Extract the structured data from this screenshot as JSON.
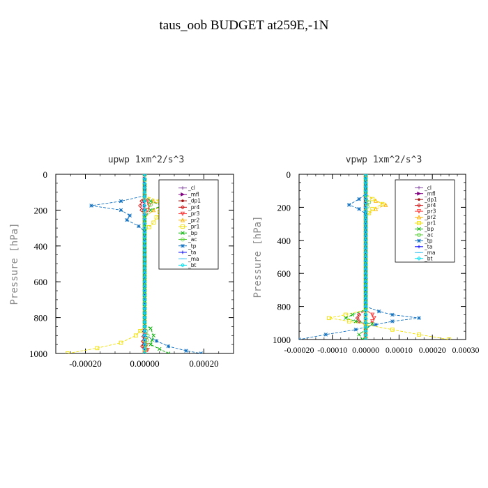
{
  "title": "taus_oob  BUDGET at259E,-1N",
  "chart_data": [
    {
      "type": "line",
      "title": "upwp   1xm^2/s^3",
      "ylabel": "Pressure [hPa]",
      "xlabel": "",
      "xlim": [
        -0.0003,
        0.0003
      ],
      "ylim": [
        1000,
        0
      ],
      "xticks": [
        -0.0002,
        0.0,
        0.0002
      ],
      "xtick_labels": [
        "-0.00020",
        "0.00000",
        "0.00020"
      ],
      "yticks": [
        0,
        200,
        400,
        600,
        800,
        1000
      ],
      "ytick_labels": [
        "0",
        "200",
        "400",
        "600",
        "800",
        "1000"
      ],
      "legend_position": "top-right",
      "series": [
        {
          "name": "_cl",
          "color": "#8040a0",
          "marker": "plus",
          "values": [
            [
              0,
              0
            ],
            [
              0,
              100
            ],
            [
              0,
              200
            ],
            [
              0,
              400
            ],
            [
              0,
              600
            ],
            [
              0,
              800
            ],
            [
              0,
              1000
            ]
          ]
        },
        {
          "name": "_mfl",
          "color": "#800080",
          "marker": "triangle-right",
          "values": [
            [
              0,
              0
            ],
            [
              0,
              200
            ],
            [
              0,
              400
            ],
            [
              0,
              600
            ],
            [
              0,
              800
            ],
            [
              0,
              1000
            ]
          ]
        },
        {
          "name": "_dp1",
          "color": "#a01010",
          "marker": "dot",
          "values": [
            [
              0,
              0
            ],
            [
              0,
              200
            ],
            [
              0,
              400
            ],
            [
              0,
              600
            ],
            [
              0,
              800
            ],
            [
              0,
              1000
            ]
          ]
        },
        {
          "name": "_pr4",
          "color": "#d01818",
          "marker": "diamond",
          "values": [
            [
              0,
              0
            ],
            [
              0,
              120
            ],
            [
              -1e-05,
              150
            ],
            [
              -1.5e-05,
              175
            ],
            [
              -1e-05,
              200
            ],
            [
              0,
              230
            ],
            [
              0,
              300
            ],
            [
              0,
              600
            ],
            [
              0,
              850
            ],
            [
              -8e-06,
              960
            ],
            [
              0,
              1000
            ]
          ]
        },
        {
          "name": "_pr3",
          "color": "#ff3030",
          "marker": "triangle-down",
          "values": [
            [
              0,
              0
            ],
            [
              0,
              120
            ],
            [
              1e-05,
              150
            ],
            [
              1.5e-05,
              175
            ],
            [
              1e-05,
              200
            ],
            [
              0,
              230
            ],
            [
              0,
              600
            ],
            [
              0,
              900
            ],
            [
              1e-05,
              980
            ],
            [
              0,
              1000
            ]
          ]
        },
        {
          "name": "_pr2",
          "color": "#ffb000",
          "marker": "triangle-up",
          "values": [
            [
              0,
              0
            ],
            [
              0,
              120
            ],
            [
              3e-05,
              150
            ],
            [
              6e-05,
              175
            ],
            [
              3e-05,
              200
            ],
            [
              0,
              240
            ],
            [
              0,
              900
            ],
            [
              0,
              1000
            ]
          ]
        },
        {
          "name": "_pr1",
          "color": "#f0e000",
          "marker": "square",
          "values": [
            [
              0,
              0
            ],
            [
              0,
              120
            ],
            [
              5e-05,
              150
            ],
            [
              9e-05,
              180
            ],
            [
              5e-05,
              210
            ],
            [
              3e-05,
              270
            ],
            [
              0,
              320
            ],
            [
              0,
              850
            ],
            [
              -3e-05,
              900
            ],
            [
              -8e-05,
              940
            ],
            [
              -0.00016,
              970
            ],
            [
              -0.00026,
              1000
            ]
          ]
        },
        {
          "name": "_bp",
          "color": "#00b000",
          "marker": "x",
          "values": [
            [
              0,
              0
            ],
            [
              0,
              120
            ],
            [
              2e-05,
              150
            ],
            [
              6e-05,
              175
            ],
            [
              2e-05,
              200
            ],
            [
              0,
              240
            ],
            [
              0,
              840
            ],
            [
              2e-05,
              860
            ],
            [
              3e-05,
              900
            ],
            [
              2e-05,
              950
            ],
            [
              8e-05,
              1000
            ]
          ]
        },
        {
          "name": "_ac",
          "color": "#60d040",
          "marker": "circle",
          "values": [
            [
              0,
              0
            ],
            [
              0,
              140
            ],
            [
              2e-05,
              170
            ],
            [
              0,
              210
            ],
            [
              0,
              850
            ],
            [
              1e-05,
              900
            ],
            [
              0,
              1000
            ]
          ]
        },
        {
          "name": "_tp",
          "color": "#1070c0",
          "marker": "star",
          "values": [
            [
              0,
              0
            ],
            [
              0,
              120
            ],
            [
              -8e-05,
              150
            ],
            [
              -0.00018,
              175
            ],
            [
              -8e-05,
              200
            ],
            [
              -5e-05,
              230
            ],
            [
              -6e-05,
              255
            ],
            [
              -2e-05,
              290
            ],
            [
              0,
              320
            ],
            [
              0,
              900
            ],
            [
              8e-05,
              960
            ],
            [
              0.00014,
              985
            ],
            [
              0.00019,
              1000
            ]
          ]
        },
        {
          "name": "_ta",
          "color": "#0000ff",
          "marker": "plus",
          "values": [
            [
              0,
              0
            ],
            [
              0,
              200
            ],
            [
              0,
              400
            ],
            [
              0,
              800
            ],
            [
              0,
              1000
            ]
          ]
        },
        {
          "name": "_ma",
          "color": "#40c0f0",
          "marker": "dash",
          "values": [
            [
              0,
              0
            ],
            [
              0,
              400
            ],
            [
              0,
              1000
            ]
          ]
        },
        {
          "name": "_bt",
          "color": "#00e0f0",
          "marker": "diamond",
          "values": [
            [
              0,
              0
            ],
            [
              0,
              400
            ],
            [
              0,
              1000
            ]
          ]
        }
      ]
    },
    {
      "type": "line",
      "title": "vpwp   1xm^2/s^3",
      "ylabel": "Pressure [hPa]",
      "xlabel": "",
      "xlim": [
        -0.0002,
        0.0003
      ],
      "ylim": [
        1000,
        0
      ],
      "xticks": [
        -0.0002,
        -0.0001,
        0.0,
        0.0001,
        0.0002,
        0.0003
      ],
      "xtick_labels": [
        "-0.00020",
        "-0.00010",
        "0.00000",
        "0.00010",
        "0.00020",
        "0.00030"
      ],
      "yticks": [
        0,
        200,
        400,
        600,
        800,
        1000
      ],
      "ytick_labels": [
        "0",
        "200",
        "400",
        "600",
        "800",
        "1000"
      ],
      "legend_position": "top-right",
      "series": [
        {
          "name": "_cl",
          "color": "#8040a0",
          "marker": "plus",
          "values": [
            [
              0,
              0
            ],
            [
              0,
              200
            ],
            [
              0,
              400
            ],
            [
              0,
              600
            ],
            [
              0,
              800
            ],
            [
              0,
              1000
            ]
          ]
        },
        {
          "name": "_mfl",
          "color": "#800080",
          "marker": "triangle-right",
          "values": [
            [
              0,
              0
            ],
            [
              0,
              200
            ],
            [
              0,
              400
            ],
            [
              0,
              600
            ],
            [
              0,
              800
            ],
            [
              0,
              1000
            ]
          ]
        },
        {
          "name": "_dp1",
          "color": "#a01010",
          "marker": "dot",
          "values": [
            [
              0,
              0
            ],
            [
              0,
              200
            ],
            [
              0,
              400
            ],
            [
              0,
              600
            ],
            [
              0,
              800
            ],
            [
              0,
              1000
            ]
          ]
        },
        {
          "name": "_pr4",
          "color": "#d01818",
          "marker": "diamond",
          "values": [
            [
              0,
              0
            ],
            [
              0,
              820
            ],
            [
              -2e-05,
              850
            ],
            [
              -2.5e-05,
              870
            ],
            [
              -2e-05,
              890
            ],
            [
              0,
              910
            ],
            [
              0,
              1000
            ]
          ]
        },
        {
          "name": "_pr3",
          "color": "#ff3030",
          "marker": "triangle-down",
          "values": [
            [
              0,
              0
            ],
            [
              0,
              820
            ],
            [
              2e-05,
              850
            ],
            [
              2.5e-05,
              870
            ],
            [
              2e-05,
              890
            ],
            [
              0,
              910
            ],
            [
              0,
              1000
            ]
          ]
        },
        {
          "name": "_pr2",
          "color": "#ffb000",
          "marker": "triangle-up",
          "values": [
            [
              0,
              0
            ],
            [
              0,
              120
            ],
            [
              3e-05,
              160
            ],
            [
              6e-05,
              185
            ],
            [
              3e-05,
              210
            ],
            [
              0,
              250
            ],
            [
              0,
              1000
            ]
          ]
        },
        {
          "name": "_pr1",
          "color": "#f0e000",
          "marker": "square",
          "values": [
            [
              0,
              0
            ],
            [
              0,
              120
            ],
            [
              2e-05,
              150
            ],
            [
              5e-05,
              180
            ],
            [
              2e-05,
              210
            ],
            [
              0,
              260
            ],
            [
              0,
              820
            ],
            [
              -6e-05,
              850
            ],
            [
              -0.00011,
              870
            ],
            [
              -5e-05,
              890
            ],
            [
              0,
              910
            ],
            [
              8e-05,
              940
            ],
            [
              0.00016,
              970
            ],
            [
              0.00025,
              1000
            ]
          ]
        },
        {
          "name": "_bp",
          "color": "#00b000",
          "marker": "x",
          "values": [
            [
              0,
              0
            ],
            [
              0,
              820
            ],
            [
              -4e-05,
              850
            ],
            [
              -6e-05,
              870
            ],
            [
              -3e-05,
              890
            ],
            [
              2e-05,
              905
            ],
            [
              0,
              940
            ],
            [
              -2e-05,
              970
            ],
            [
              -1e-05,
              1000
            ]
          ]
        },
        {
          "name": "_ac",
          "color": "#60d040",
          "marker": "circle",
          "values": [
            [
              0,
              0
            ],
            [
              0,
              130
            ],
            [
              1e-05,
              170
            ],
            [
              0,
              220
            ],
            [
              0,
              1000
            ]
          ]
        },
        {
          "name": "_tp",
          "color": "#1070c0",
          "marker": "star",
          "values": [
            [
              0,
              0
            ],
            [
              0,
              120
            ],
            [
              -2e-05,
              150
            ],
            [
              -5e-05,
              185
            ],
            [
              -2e-05,
              210
            ],
            [
              0,
              240
            ],
            [
              0,
              800
            ],
            [
              4e-05,
              830
            ],
            [
              8e-05,
              850
            ],
            [
              0.00016,
              870
            ],
            [
              8e-05,
              890
            ],
            [
              3e-05,
              910
            ],
            [
              -3e-05,
              940
            ],
            [
              -0.00012,
              970
            ],
            [
              -0.0002,
              1000
            ]
          ]
        },
        {
          "name": "_ta",
          "color": "#0000ff",
          "marker": "plus",
          "values": [
            [
              0,
              0
            ],
            [
              0,
              200
            ],
            [
              0,
              400
            ],
            [
              0,
              800
            ],
            [
              0,
              1000
            ]
          ]
        },
        {
          "name": "_ma",
          "color": "#40c0f0",
          "marker": "dash",
          "values": [
            [
              0,
              0
            ],
            [
              0,
              400
            ],
            [
              0,
              1000
            ]
          ]
        },
        {
          "name": "_bt",
          "color": "#00e0f0",
          "marker": "diamond",
          "values": [
            [
              0,
              0
            ],
            [
              0,
              400
            ],
            [
              0,
              1000
            ]
          ]
        }
      ]
    }
  ]
}
